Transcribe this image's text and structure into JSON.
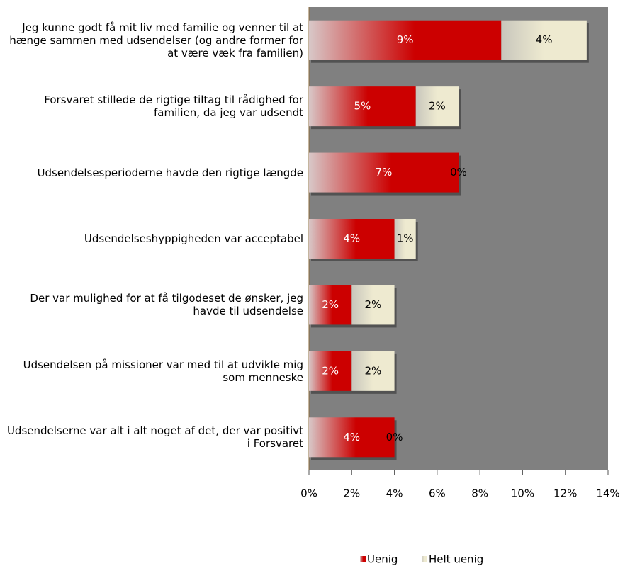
{
  "chart_data": {
    "type": "stacked-bar-horizontal",
    "categories": [
      "Jeg kunne godt få mit liv med familie og venner til at hænge sammen med udsendelser (og andre former for at være væk fra familien)",
      "Forsvaret stillede de rigtige tiltag til rådighed for familien, da jeg var udsendt",
      "Udsendelsesperioderne havde den rigtige længde",
      "Udsendelseshyppigheden var acceptabel",
      "Der var mulighed for at få tilgodeset de ønsker, jeg havde til udsendelse",
      "Udsendelsen på missioner var med til at udvikle mig som menneske",
      "Udsendelserne var alt i alt noget af det, der var positivt i Forsvaret"
    ],
    "series": [
      {
        "name": "Uenig",
        "color": "#cc0000",
        "values": [
          9,
          5,
          7,
          4,
          2,
          2,
          4
        ],
        "value_labels": [
          "9%",
          "5%",
          "7%",
          "4%",
          "2%",
          "2%",
          "4%"
        ]
      },
      {
        "name": "Helt uenig",
        "color": "#eeead0",
        "values": [
          4,
          2,
          0,
          1,
          2,
          2,
          0
        ],
        "value_labels": [
          "4%",
          "2%",
          "0%",
          "1%",
          "2%",
          "2%",
          "0%"
        ]
      }
    ],
    "xlim": [
      0,
      14
    ],
    "xticks": [
      {
        "value": 0,
        "label": "0%"
      },
      {
        "value": 2,
        "label": "2%"
      },
      {
        "value": 4,
        "label": "4%"
      },
      {
        "value": 6,
        "label": "6%"
      },
      {
        "value": 8,
        "label": "8%"
      },
      {
        "value": 10,
        "label": "10%"
      },
      {
        "value": 12,
        "label": "12%"
      },
      {
        "value": 14,
        "label": "14%"
      }
    ],
    "plot_background": "#808080",
    "legend": "bottom"
  }
}
